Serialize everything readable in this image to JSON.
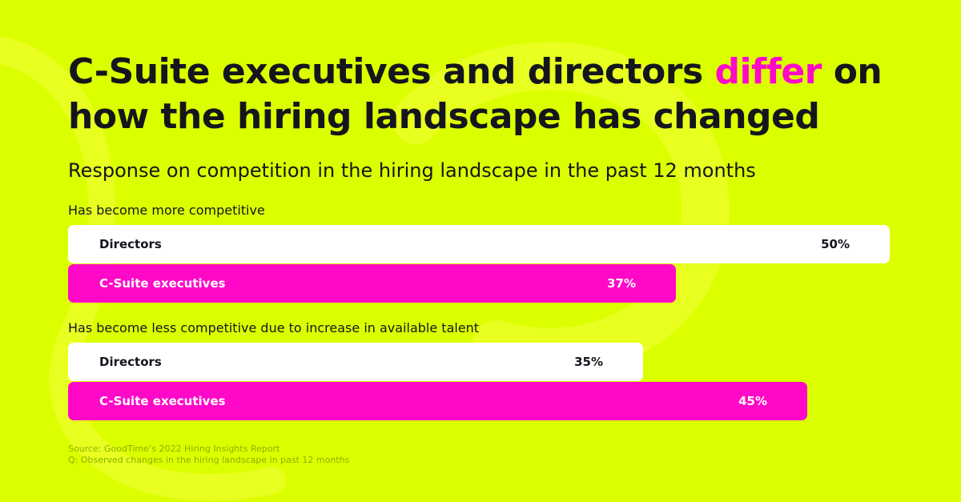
{
  "colors": {
    "background": "#dcff00",
    "accent": "#ff08c8",
    "text": "#14161c",
    "directors_bar": "#ffffff",
    "csuite_bar": "#ff08c8",
    "source_text": "#8cb000"
  },
  "title": {
    "part1": "C-Suite executives and directors ",
    "highlight": "differ",
    "part2": " on how the hiring landscape has changed"
  },
  "chart_data": {
    "type": "bar",
    "orientation": "horizontal",
    "title": "Response on competition in the hiring landscape in the past 12 months",
    "xlim": [
      0,
      50
    ],
    "categories": [
      "Has become more competitive",
      "Has become less competitive due to increase in available talent"
    ],
    "series": [
      {
        "name": "Directors",
        "values": [
          50,
          35
        ],
        "labels": [
          "50%",
          "35%"
        ],
        "color": "#ffffff",
        "label_color": "#14161c"
      },
      {
        "name": "C-Suite executives",
        "values": [
          37,
          45
        ],
        "labels": [
          "37%",
          "45%"
        ],
        "color": "#ff08c8",
        "label_color": "#ffffff"
      }
    ]
  },
  "source": {
    "line1": "Source: GoodTime’s 2022 Hiring Insights Report",
    "line2": "Q: Observed changes in the hiring landscape in past 12 months"
  }
}
